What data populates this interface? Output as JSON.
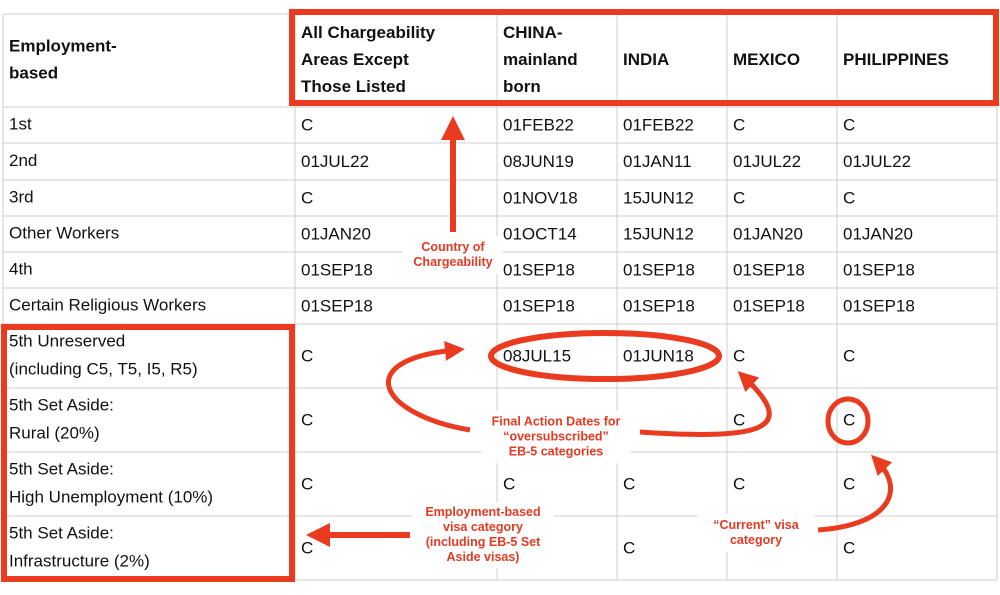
{
  "table": {
    "header": [
      [
        "Employment-",
        "based"
      ],
      [
        "All Chargeability",
        "Areas Except",
        "Those Listed"
      ],
      [
        "CHINA-",
        "mainland",
        "born"
      ],
      [
        "INDIA"
      ],
      [
        "MEXICO"
      ],
      [
        "PHILIPPINES"
      ]
    ],
    "rows": [
      [
        [
          "1st"
        ],
        "C",
        "01FEB22",
        "01FEB22",
        "C",
        "C"
      ],
      [
        [
          "2nd"
        ],
        "01JUL22",
        "08JUN19",
        "01JAN11",
        "01JUL22",
        "01JUL22"
      ],
      [
        [
          "3rd"
        ],
        "C",
        "01NOV18",
        "15JUN12",
        "C",
        "C"
      ],
      [
        [
          "Other Workers"
        ],
        "01JAN20",
        "01OCT14",
        "15JUN12",
        "01JAN20",
        "01JAN20"
      ],
      [
        [
          "4th"
        ],
        "01SEP18",
        "01SEP18",
        "01SEP18",
        "01SEP18",
        "01SEP18"
      ],
      [
        [
          "Certain Religious Workers"
        ],
        "01SEP18",
        "01SEP18",
        "01SEP18",
        "01SEP18",
        "01SEP18"
      ],
      [
        [
          "5th Unreserved",
          "(including C5, T5, I5, R5)"
        ],
        "C",
        "08JUL15",
        "01JUN18",
        "C",
        "C"
      ],
      [
        [
          "5th Set Aside:",
          "Rural (20%)"
        ],
        "C",
        null,
        null,
        "C",
        "C"
      ],
      [
        [
          "5th Set Aside:",
          "High Unemployment (10%)"
        ],
        "C",
        "C",
        "C",
        "C",
        "C"
      ],
      [
        [
          "5th Set Aside:",
          "Infrastructure (2%)"
        ],
        "C",
        null,
        "C",
        null,
        "C"
      ]
    ]
  },
  "annotations": {
    "country": [
      "Country of",
      "Chargeability"
    ],
    "final_action": [
      "Final Action Dates for",
      "“oversubscribed”",
      "EB-5 categories"
    ],
    "employment": [
      "Employment-based",
      "visa category",
      "(including EB-5 Set",
      "Aside visas)"
    ],
    "current": [
      "“Current” visa",
      "category"
    ]
  }
}
